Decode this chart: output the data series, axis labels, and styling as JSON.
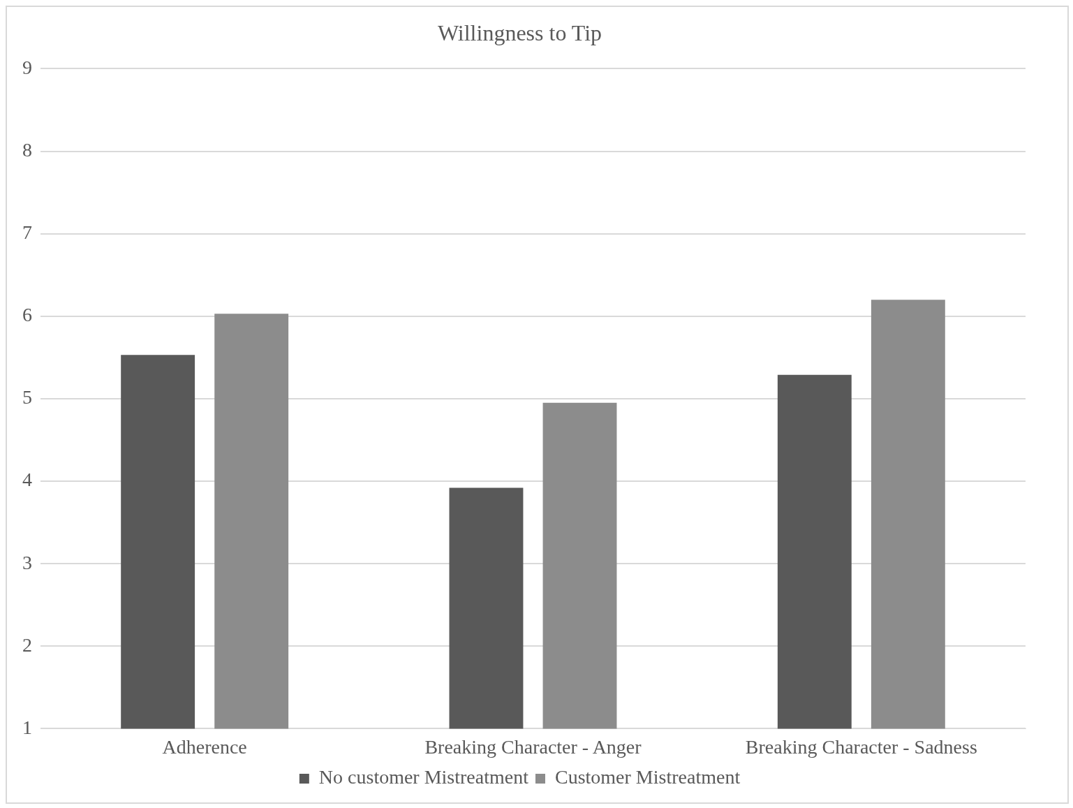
{
  "chart_data": {
    "type": "bar",
    "title": "Willingness to Tip",
    "categories": [
      "Adherence",
      "Breaking Character - Anger",
      "Breaking Character - Sadness"
    ],
    "series": [
      {
        "name": "No customer Mistreatment",
        "color": "#595959",
        "values": [
          5.53,
          3.92,
          5.29
        ]
      },
      {
        "name": "Customer Mistreatment",
        "color": "#8c8c8c",
        "values": [
          6.03,
          4.95,
          6.2
        ]
      }
    ],
    "ylim": [
      1,
      9
    ],
    "yticks": [
      1,
      2,
      3,
      4,
      5,
      6,
      7,
      8,
      9
    ],
    "grid": "y",
    "legend": "bottom"
  }
}
